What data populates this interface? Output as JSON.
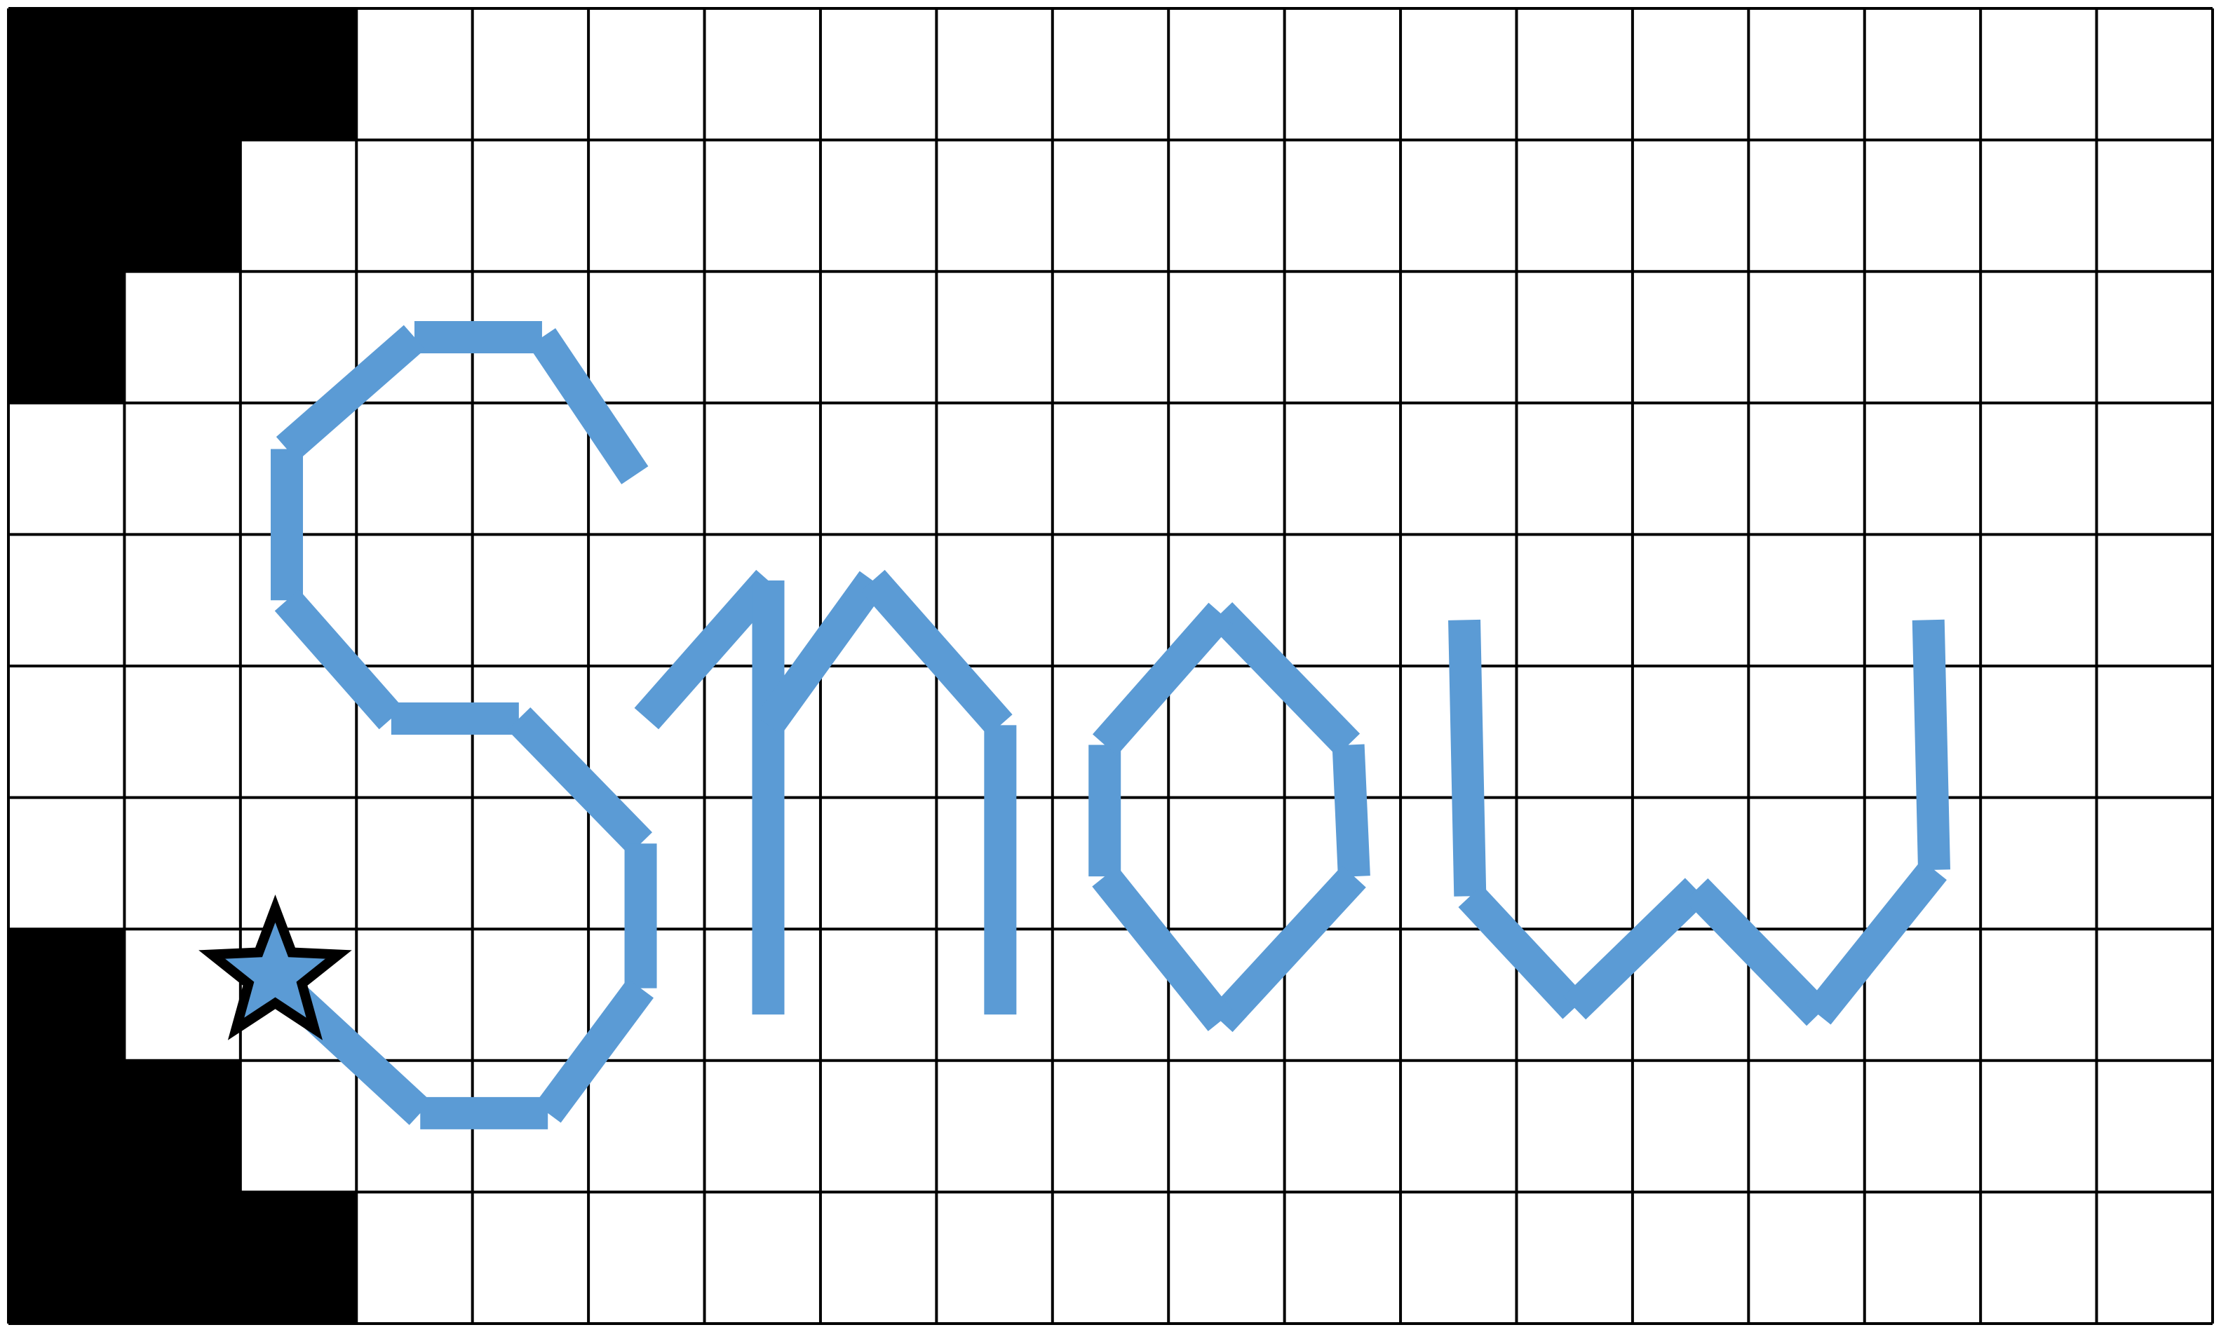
{
  "grid": {
    "cols": 19,
    "rows": 10,
    "line_color": "#000000",
    "background": "#ffffff"
  },
  "filled_cells": [
    [
      0,
      0
    ],
    [
      1,
      0
    ],
    [
      2,
      0
    ],
    [
      0,
      1
    ],
    [
      1,
      1
    ],
    [
      0,
      2
    ],
    [
      0,
      7
    ],
    [
      0,
      8
    ],
    [
      1,
      8
    ],
    [
      0,
      9
    ],
    [
      1,
      9
    ],
    [
      2,
      9
    ]
  ],
  "fill_color": "#000000",
  "stroke_color": "#5b9bd5",
  "strokes": [
    {
      "name": "letter-s",
      "points": [
        [
          5.4,
          3.55
        ],
        [
          4.6,
          2.5
        ],
        [
          3.5,
          2.5
        ],
        [
          2.4,
          3.35
        ],
        [
          2.4,
          4.5
        ],
        [
          3.3,
          5.4
        ],
        [
          4.4,
          5.4
        ],
        [
          5.45,
          6.35
        ],
        [
          5.45,
          7.45
        ],
        [
          4.65,
          8.4
        ],
        [
          3.55,
          8.4
        ],
        [
          2.2,
          7.3
        ]
      ]
    },
    {
      "name": "letter-n",
      "points": [
        [
          5.5,
          5.4
        ],
        [
          6.55,
          4.35
        ],
        [
          6.55,
          7.65
        ]
      ]
    },
    {
      "name": "letter-n-arch",
      "points": [
        [
          6.55,
          5.45
        ],
        [
          7.45,
          4.35
        ],
        [
          8.55,
          5.45
        ],
        [
          8.55,
          7.65
        ]
      ]
    },
    {
      "name": "letter-o",
      "points": [
        [
          10.45,
          4.6
        ],
        [
          11.55,
          5.6
        ],
        [
          11.6,
          6.6
        ],
        [
          10.45,
          7.7
        ],
        [
          9.45,
          6.6
        ],
        [
          9.45,
          5.6
        ],
        [
          10.45,
          4.6
        ]
      ]
    },
    {
      "name": "letter-w",
      "points": [
        [
          12.55,
          4.65
        ],
        [
          12.6,
          6.75
        ],
        [
          13.5,
          7.6
        ],
        [
          14.55,
          6.7
        ],
        [
          15.6,
          7.65
        ],
        [
          16.6,
          6.55
        ],
        [
          16.55,
          4.65
        ]
      ]
    }
  ],
  "start_marker": {
    "icon": "star-icon",
    "col": 2.3,
    "row": 7.35,
    "fill": "#5b9bd5",
    "outline": "#000000"
  }
}
